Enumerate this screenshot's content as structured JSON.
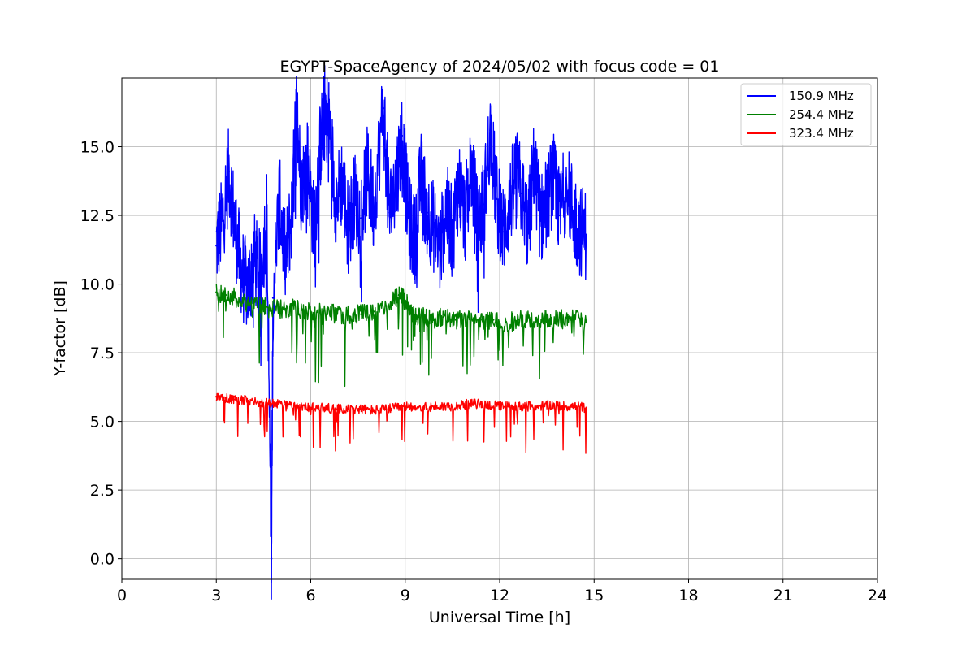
{
  "chart_data": {
    "type": "line",
    "title": "EGYPT-SpaceAgency of 2024/05/02 with focus code = 01",
    "xlabel": "Universal Time [h]",
    "ylabel": "Y-factor [dB]",
    "xlim": [
      0,
      24
    ],
    "ylim": [
      -0.75,
      17.5
    ],
    "xticks": [
      0,
      3,
      6,
      9,
      12,
      15,
      18,
      21,
      24
    ],
    "yticks": [
      0.0,
      2.5,
      5.0,
      7.5,
      10.0,
      12.5,
      15.0
    ],
    "xtick_labels": [
      "0",
      "3",
      "6",
      "9",
      "12",
      "15",
      "18",
      "21",
      "24"
    ],
    "ytick_labels": [
      "0.0",
      "2.5",
      "5.0",
      "7.5",
      "10.0",
      "12.5",
      "15.0"
    ],
    "grid": true,
    "legend_position": "top-right",
    "series": [
      {
        "name": "150.9 MHz",
        "color": "#0000ff",
        "x": [
          3.0,
          3.2,
          3.4,
          3.6,
          3.8,
          4.0,
          4.2,
          4.4,
          4.6,
          4.75,
          4.8,
          5.0,
          5.2,
          5.4,
          5.55,
          5.7,
          5.9,
          6.1,
          6.3,
          6.45,
          6.6,
          6.8,
          7.0,
          7.2,
          7.4,
          7.6,
          7.8,
          8.0,
          8.3,
          8.5,
          8.7,
          8.9,
          9.1,
          9.3,
          9.5,
          9.7,
          9.9,
          10.1,
          10.3,
          10.5,
          10.7,
          10.9,
          11.1,
          11.3,
          11.5,
          11.7,
          11.9,
          12.1,
          12.3,
          12.5,
          12.7,
          12.9,
          13.1,
          13.3,
          13.5,
          13.7,
          13.9,
          14.1,
          14.3,
          14.5,
          14.75
        ],
        "y": [
          11.4,
          12.3,
          14.1,
          12.0,
          10.5,
          9.8,
          11.0,
          10.2,
          12.5,
          0.0,
          9.5,
          13.1,
          10.8,
          12.6,
          16.4,
          13.5,
          14.5,
          12.0,
          15.0,
          16.4,
          15.7,
          13.0,
          13.8,
          12.0,
          13.2,
          12.4,
          14.1,
          12.8,
          16.4,
          12.6,
          13.7,
          15.4,
          12.5,
          11.5,
          13.9,
          12.6,
          12.1,
          11.2,
          12.8,
          11.8,
          13.7,
          12.4,
          14.2,
          12.2,
          12.9,
          15.6,
          13.1,
          11.9,
          12.7,
          14.1,
          13.3,
          12.0,
          14.4,
          12.3,
          13.0,
          13.9,
          12.5,
          13.6,
          12.8,
          12.0,
          11.8
        ]
      },
      {
        "name": "254.4 MHz",
        "color": "#008000",
        "x": [
          3.0,
          3.3,
          3.6,
          4.0,
          4.4,
          4.8,
          5.2,
          5.6,
          6.0,
          6.4,
          6.8,
          7.2,
          7.6,
          8.0,
          8.4,
          8.8,
          9.0,
          9.2,
          9.4,
          9.6,
          9.8,
          10.2,
          10.6,
          11.0,
          11.4,
          11.8,
          12.2,
          12.6,
          13.0,
          13.4,
          13.8,
          14.2,
          14.75
        ],
        "y": [
          9.7,
          9.6,
          9.5,
          9.3,
          9.2,
          9.1,
          9.1,
          9.1,
          9.0,
          9.0,
          8.9,
          8.9,
          8.9,
          9.0,
          9.2,
          9.6,
          9.4,
          9.0,
          8.8,
          8.8,
          8.7,
          8.8,
          8.7,
          8.8,
          8.7,
          8.7,
          8.6,
          8.7,
          8.7,
          8.7,
          8.7,
          8.8,
          8.6
        ]
      },
      {
        "name": "323.4 MHz",
        "color": "#ff0000",
        "x": [
          3.0,
          3.3,
          3.6,
          4.0,
          4.4,
          4.8,
          5.2,
          5.6,
          6.0,
          6.4,
          6.8,
          7.2,
          7.6,
          8.0,
          8.4,
          8.8,
          9.2,
          9.6,
          10.0,
          10.4,
          10.8,
          11.2,
          11.6,
          12.0,
          12.4,
          12.8,
          13.2,
          13.6,
          14.0,
          14.4,
          14.75
        ],
        "y": [
          5.9,
          5.85,
          5.8,
          5.75,
          5.7,
          5.65,
          5.6,
          5.55,
          5.5,
          5.5,
          5.45,
          5.45,
          5.45,
          5.4,
          5.45,
          5.5,
          5.55,
          5.5,
          5.55,
          5.55,
          5.6,
          5.65,
          5.6,
          5.55,
          5.55,
          5.55,
          5.55,
          5.6,
          5.55,
          5.55,
          5.5
        ]
      }
    ]
  }
}
